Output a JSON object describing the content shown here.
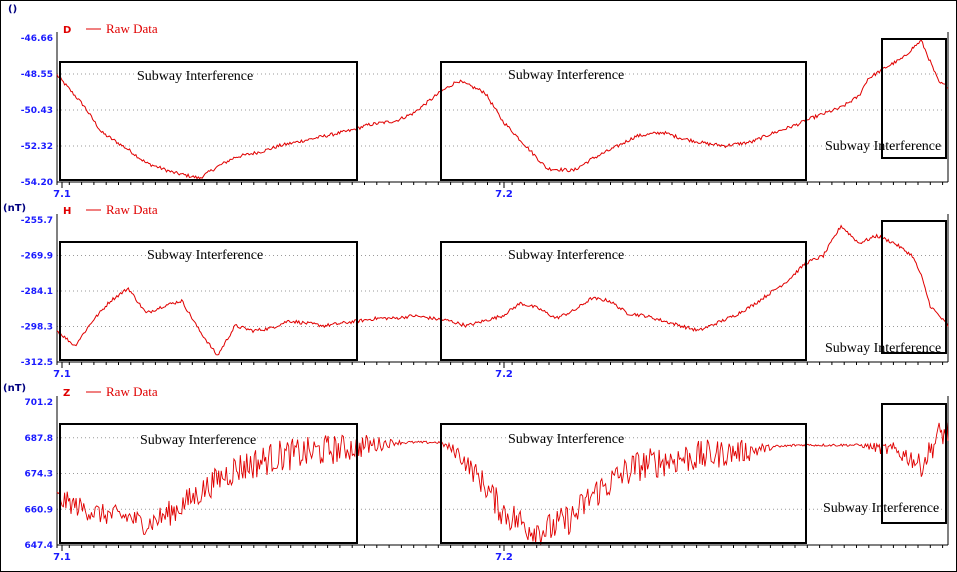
{
  "chart_data": [
    {
      "type": "line",
      "panel_letter": "D",
      "unit": "()",
      "legend": "Raw Data",
      "series_color": "#e00000",
      "ylim": [
        -54.2,
        -46.66
      ],
      "yticks": [
        "-46.66",
        "-48.55",
        "-50.43",
        "-52.32",
        "-54.20"
      ],
      "xticks": [
        "7.1",
        "7.2"
      ],
      "grid": "horizontal dotted",
      "x": [
        0.0,
        0.03,
        0.05,
        0.08,
        0.1,
        0.13,
        0.16,
        0.18,
        0.2,
        0.23,
        0.25,
        0.28,
        0.3,
        0.33,
        0.35,
        0.38,
        0.4,
        0.43,
        0.45,
        0.48,
        0.5,
        0.53,
        0.55,
        0.58,
        0.6,
        0.63,
        0.65,
        0.68,
        0.7,
        0.73,
        0.75,
        0.78,
        0.8,
        0.83,
        0.85,
        0.88,
        0.9,
        0.91,
        0.93,
        0.95,
        0.96,
        0.97,
        0.99,
        1.0
      ],
      "y": [
        -48.6,
        -50.2,
        -51.6,
        -52.5,
        -53.2,
        -53.7,
        -54.0,
        -53.4,
        -52.9,
        -52.6,
        -52.3,
        -52.0,
        -51.8,
        -51.5,
        -51.2,
        -51.0,
        -50.6,
        -49.5,
        -48.9,
        -49.5,
        -51.0,
        -52.5,
        -53.5,
        -53.6,
        -53.0,
        -52.3,
        -51.8,
        -51.6,
        -51.9,
        -52.2,
        -52.3,
        -52.1,
        -51.7,
        -51.2,
        -50.8,
        -50.3,
        -49.7,
        -48.8,
        -48.2,
        -47.7,
        -47.2,
        -46.8,
        -49.0,
        -49.2
      ],
      "annotations": [
        {
          "label": "Subway Interference"
        },
        {
          "label": "Subway Interference"
        },
        {
          "label": "Subway Interference"
        }
      ]
    },
    {
      "type": "line",
      "panel_letter": "H",
      "unit": "(nT)",
      "legend": "Raw Data",
      "series_color": "#e00000",
      "ylim": [
        -312.5,
        -255.7
      ],
      "yticks": [
        "-255.7",
        "-269.9",
        "-284.1",
        "-298.3",
        "-312.5"
      ],
      "xticks": [
        "7.1",
        "7.2"
      ],
      "grid": "horizontal dotted",
      "x": [
        0.0,
        0.02,
        0.04,
        0.06,
        0.08,
        0.1,
        0.12,
        0.14,
        0.16,
        0.18,
        0.2,
        0.22,
        0.24,
        0.26,
        0.28,
        0.3,
        0.32,
        0.34,
        0.36,
        0.38,
        0.4,
        0.42,
        0.44,
        0.46,
        0.48,
        0.5,
        0.52,
        0.54,
        0.56,
        0.58,
        0.6,
        0.62,
        0.64,
        0.66,
        0.68,
        0.7,
        0.72,
        0.74,
        0.76,
        0.78,
        0.8,
        0.82,
        0.84,
        0.86,
        0.88,
        0.9,
        0.92,
        0.94,
        0.96,
        0.97,
        0.98,
        1.0
      ],
      "y": [
        -300,
        -306,
        -296,
        -288,
        -283,
        -293,
        -290,
        -288,
        -300,
        -310,
        -298,
        -300,
        -299,
        -296,
        -297,
        -298,
        -297,
        -296,
        -295,
        -295,
        -294,
        -295,
        -296,
        -298,
        -296,
        -294,
        -289,
        -291,
        -295,
        -292,
        -287,
        -288,
        -293,
        -294,
        -296,
        -298,
        -300,
        -297,
        -294,
        -290,
        -285,
        -280,
        -273,
        -270,
        -258,
        -265,
        -262,
        -265,
        -270,
        -278,
        -290,
        -298
      ],
      "annotations": [
        {
          "label": "Subway Interference"
        },
        {
          "label": "Subway Interference"
        },
        {
          "label": "Subway Interference"
        }
      ]
    },
    {
      "type": "line",
      "panel_letter": "Z",
      "unit": "(nT)",
      "legend": "Raw Data",
      "series_color": "#e00000",
      "ylim": [
        647.4,
        701.2
      ],
      "yticks": [
        "701.2",
        "687.8",
        "674.3",
        "660.9",
        "647.4"
      ],
      "xticks": [
        "7.1",
        "7.2"
      ],
      "grid": "horizontal dotted",
      "x": [
        0.0,
        0.03,
        0.05,
        0.08,
        0.1,
        0.13,
        0.16,
        0.18,
        0.2,
        0.23,
        0.25,
        0.28,
        0.3,
        0.33,
        0.35,
        0.38,
        0.4,
        0.43,
        0.45,
        0.48,
        0.5,
        0.53,
        0.55,
        0.58,
        0.6,
        0.63,
        0.65,
        0.68,
        0.7,
        0.73,
        0.75,
        0.78,
        0.8,
        0.83,
        0.85,
        0.88,
        0.9,
        0.92,
        0.94,
        0.96,
        0.97,
        0.99,
        1.0
      ],
      "y": [
        665,
        661,
        659,
        658,
        655,
        660,
        667,
        672,
        676,
        679,
        681,
        682,
        683,
        684,
        685,
        686,
        686,
        686,
        682,
        670,
        660,
        654,
        653,
        658,
        666,
        673,
        677,
        679,
        680,
        681,
        682,
        683,
        684,
        685,
        685,
        685,
        685,
        684,
        683,
        680,
        677,
        689,
        690
      ],
      "noise": [
        4,
        4,
        4,
        4,
        4,
        5,
        5,
        5,
        6,
        6,
        6,
        6,
        6,
        5,
        4,
        1,
        0.5,
        0.5,
        3,
        5,
        6,
        6,
        6,
        6,
        6,
        6,
        6,
        6,
        6,
        6,
        5,
        4,
        1,
        0.5,
        0.5,
        0.5,
        0.5,
        2,
        3,
        4,
        4,
        5,
        5
      ],
      "annotations": [
        {
          "label": "Subway Interference"
        },
        {
          "label": "Subway Interference"
        },
        {
          "label": "Subway Interference"
        }
      ]
    }
  ]
}
